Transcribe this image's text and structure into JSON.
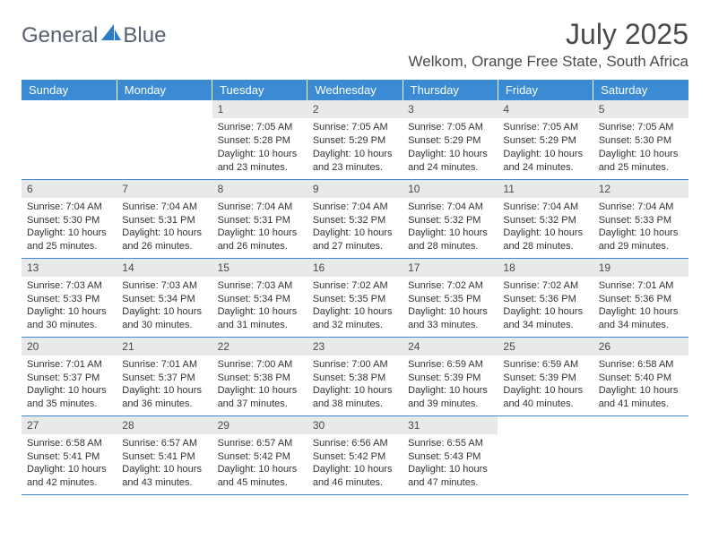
{
  "logo": {
    "text1": "General",
    "text2": "Blue"
  },
  "title": "July 2025",
  "location": "Welkom, Orange Free State, South Africa",
  "colors": {
    "header_bg": "#3b8bd4",
    "header_text": "#ffffff",
    "daynum_bg": "#e8e9ea",
    "border": "#3b8bd4",
    "text": "#333333",
    "logo_text": "#556070",
    "logo_icon": "#2c7bc9"
  },
  "weekdays": [
    "Sunday",
    "Monday",
    "Tuesday",
    "Wednesday",
    "Thursday",
    "Friday",
    "Saturday"
  ],
  "weeks": [
    [
      {
        "empty": true
      },
      {
        "empty": true
      },
      {
        "day": "1",
        "sunrise": "Sunrise: 7:05 AM",
        "sunset": "Sunset: 5:28 PM",
        "daylight1": "Daylight: 10 hours",
        "daylight2": "and 23 minutes."
      },
      {
        "day": "2",
        "sunrise": "Sunrise: 7:05 AM",
        "sunset": "Sunset: 5:29 PM",
        "daylight1": "Daylight: 10 hours",
        "daylight2": "and 23 minutes."
      },
      {
        "day": "3",
        "sunrise": "Sunrise: 7:05 AM",
        "sunset": "Sunset: 5:29 PM",
        "daylight1": "Daylight: 10 hours",
        "daylight2": "and 24 minutes."
      },
      {
        "day": "4",
        "sunrise": "Sunrise: 7:05 AM",
        "sunset": "Sunset: 5:29 PM",
        "daylight1": "Daylight: 10 hours",
        "daylight2": "and 24 minutes."
      },
      {
        "day": "5",
        "sunrise": "Sunrise: 7:05 AM",
        "sunset": "Sunset: 5:30 PM",
        "daylight1": "Daylight: 10 hours",
        "daylight2": "and 25 minutes."
      }
    ],
    [
      {
        "day": "6",
        "sunrise": "Sunrise: 7:04 AM",
        "sunset": "Sunset: 5:30 PM",
        "daylight1": "Daylight: 10 hours",
        "daylight2": "and 25 minutes."
      },
      {
        "day": "7",
        "sunrise": "Sunrise: 7:04 AM",
        "sunset": "Sunset: 5:31 PM",
        "daylight1": "Daylight: 10 hours",
        "daylight2": "and 26 minutes."
      },
      {
        "day": "8",
        "sunrise": "Sunrise: 7:04 AM",
        "sunset": "Sunset: 5:31 PM",
        "daylight1": "Daylight: 10 hours",
        "daylight2": "and 26 minutes."
      },
      {
        "day": "9",
        "sunrise": "Sunrise: 7:04 AM",
        "sunset": "Sunset: 5:32 PM",
        "daylight1": "Daylight: 10 hours",
        "daylight2": "and 27 minutes."
      },
      {
        "day": "10",
        "sunrise": "Sunrise: 7:04 AM",
        "sunset": "Sunset: 5:32 PM",
        "daylight1": "Daylight: 10 hours",
        "daylight2": "and 28 minutes."
      },
      {
        "day": "11",
        "sunrise": "Sunrise: 7:04 AM",
        "sunset": "Sunset: 5:32 PM",
        "daylight1": "Daylight: 10 hours",
        "daylight2": "and 28 minutes."
      },
      {
        "day": "12",
        "sunrise": "Sunrise: 7:04 AM",
        "sunset": "Sunset: 5:33 PM",
        "daylight1": "Daylight: 10 hours",
        "daylight2": "and 29 minutes."
      }
    ],
    [
      {
        "day": "13",
        "sunrise": "Sunrise: 7:03 AM",
        "sunset": "Sunset: 5:33 PM",
        "daylight1": "Daylight: 10 hours",
        "daylight2": "and 30 minutes."
      },
      {
        "day": "14",
        "sunrise": "Sunrise: 7:03 AM",
        "sunset": "Sunset: 5:34 PM",
        "daylight1": "Daylight: 10 hours",
        "daylight2": "and 30 minutes."
      },
      {
        "day": "15",
        "sunrise": "Sunrise: 7:03 AM",
        "sunset": "Sunset: 5:34 PM",
        "daylight1": "Daylight: 10 hours",
        "daylight2": "and 31 minutes."
      },
      {
        "day": "16",
        "sunrise": "Sunrise: 7:02 AM",
        "sunset": "Sunset: 5:35 PM",
        "daylight1": "Daylight: 10 hours",
        "daylight2": "and 32 minutes."
      },
      {
        "day": "17",
        "sunrise": "Sunrise: 7:02 AM",
        "sunset": "Sunset: 5:35 PM",
        "daylight1": "Daylight: 10 hours",
        "daylight2": "and 33 minutes."
      },
      {
        "day": "18",
        "sunrise": "Sunrise: 7:02 AM",
        "sunset": "Sunset: 5:36 PM",
        "daylight1": "Daylight: 10 hours",
        "daylight2": "and 34 minutes."
      },
      {
        "day": "19",
        "sunrise": "Sunrise: 7:01 AM",
        "sunset": "Sunset: 5:36 PM",
        "daylight1": "Daylight: 10 hours",
        "daylight2": "and 34 minutes."
      }
    ],
    [
      {
        "day": "20",
        "sunrise": "Sunrise: 7:01 AM",
        "sunset": "Sunset: 5:37 PM",
        "daylight1": "Daylight: 10 hours",
        "daylight2": "and 35 minutes."
      },
      {
        "day": "21",
        "sunrise": "Sunrise: 7:01 AM",
        "sunset": "Sunset: 5:37 PM",
        "daylight1": "Daylight: 10 hours",
        "daylight2": "and 36 minutes."
      },
      {
        "day": "22",
        "sunrise": "Sunrise: 7:00 AM",
        "sunset": "Sunset: 5:38 PM",
        "daylight1": "Daylight: 10 hours",
        "daylight2": "and 37 minutes."
      },
      {
        "day": "23",
        "sunrise": "Sunrise: 7:00 AM",
        "sunset": "Sunset: 5:38 PM",
        "daylight1": "Daylight: 10 hours",
        "daylight2": "and 38 minutes."
      },
      {
        "day": "24",
        "sunrise": "Sunrise: 6:59 AM",
        "sunset": "Sunset: 5:39 PM",
        "daylight1": "Daylight: 10 hours",
        "daylight2": "and 39 minutes."
      },
      {
        "day": "25",
        "sunrise": "Sunrise: 6:59 AM",
        "sunset": "Sunset: 5:39 PM",
        "daylight1": "Daylight: 10 hours",
        "daylight2": "and 40 minutes."
      },
      {
        "day": "26",
        "sunrise": "Sunrise: 6:58 AM",
        "sunset": "Sunset: 5:40 PM",
        "daylight1": "Daylight: 10 hours",
        "daylight2": "and 41 minutes."
      }
    ],
    [
      {
        "day": "27",
        "sunrise": "Sunrise: 6:58 AM",
        "sunset": "Sunset: 5:41 PM",
        "daylight1": "Daylight: 10 hours",
        "daylight2": "and 42 minutes."
      },
      {
        "day": "28",
        "sunrise": "Sunrise: 6:57 AM",
        "sunset": "Sunset: 5:41 PM",
        "daylight1": "Daylight: 10 hours",
        "daylight2": "and 43 minutes."
      },
      {
        "day": "29",
        "sunrise": "Sunrise: 6:57 AM",
        "sunset": "Sunset: 5:42 PM",
        "daylight1": "Daylight: 10 hours",
        "daylight2": "and 45 minutes."
      },
      {
        "day": "30",
        "sunrise": "Sunrise: 6:56 AM",
        "sunset": "Sunset: 5:42 PM",
        "daylight1": "Daylight: 10 hours",
        "daylight2": "and 46 minutes."
      },
      {
        "day": "31",
        "sunrise": "Sunrise: 6:55 AM",
        "sunset": "Sunset: 5:43 PM",
        "daylight1": "Daylight: 10 hours",
        "daylight2": "and 47 minutes."
      },
      {
        "empty": true
      },
      {
        "empty": true
      }
    ]
  ]
}
